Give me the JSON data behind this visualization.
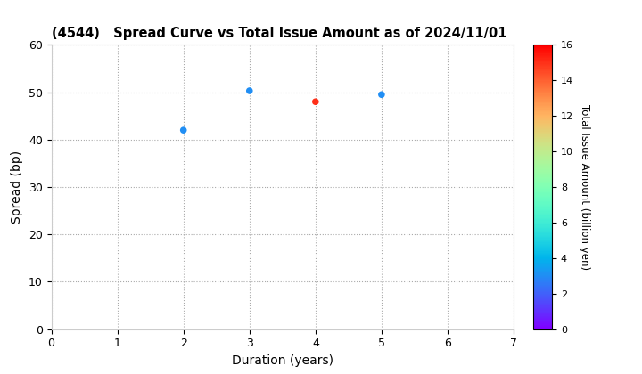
{
  "title": "(4544)   Spread Curve vs Total Issue Amount as of 2024/11/01",
  "xlabel": "Duration (years)",
  "ylabel": "Spread (bp)",
  "colorbar_label": "Total Issue Amount (billion yen)",
  "xlim": [
    0,
    7
  ],
  "ylim": [
    0,
    60
  ],
  "xticks": [
    0,
    1,
    2,
    3,
    4,
    5,
    6,
    7
  ],
  "yticks": [
    0,
    10,
    20,
    30,
    40,
    50,
    60
  ],
  "colorbar_min": 0,
  "colorbar_max": 16,
  "colorbar_ticks": [
    0,
    2,
    4,
    6,
    8,
    10,
    12,
    14,
    16
  ],
  "points": [
    {
      "duration": 2.0,
      "spread": 42.0,
      "amount": 3.0
    },
    {
      "duration": 3.0,
      "spread": 50.3,
      "amount": 3.0
    },
    {
      "duration": 4.0,
      "spread": 48.0,
      "amount": 15.0
    },
    {
      "duration": 5.0,
      "spread": 49.5,
      "amount": 3.0
    }
  ],
  "marker_size": 30,
  "background_color": "#ffffff",
  "grid_color": "#aaaaaa",
  "grid_linestyle": ":"
}
